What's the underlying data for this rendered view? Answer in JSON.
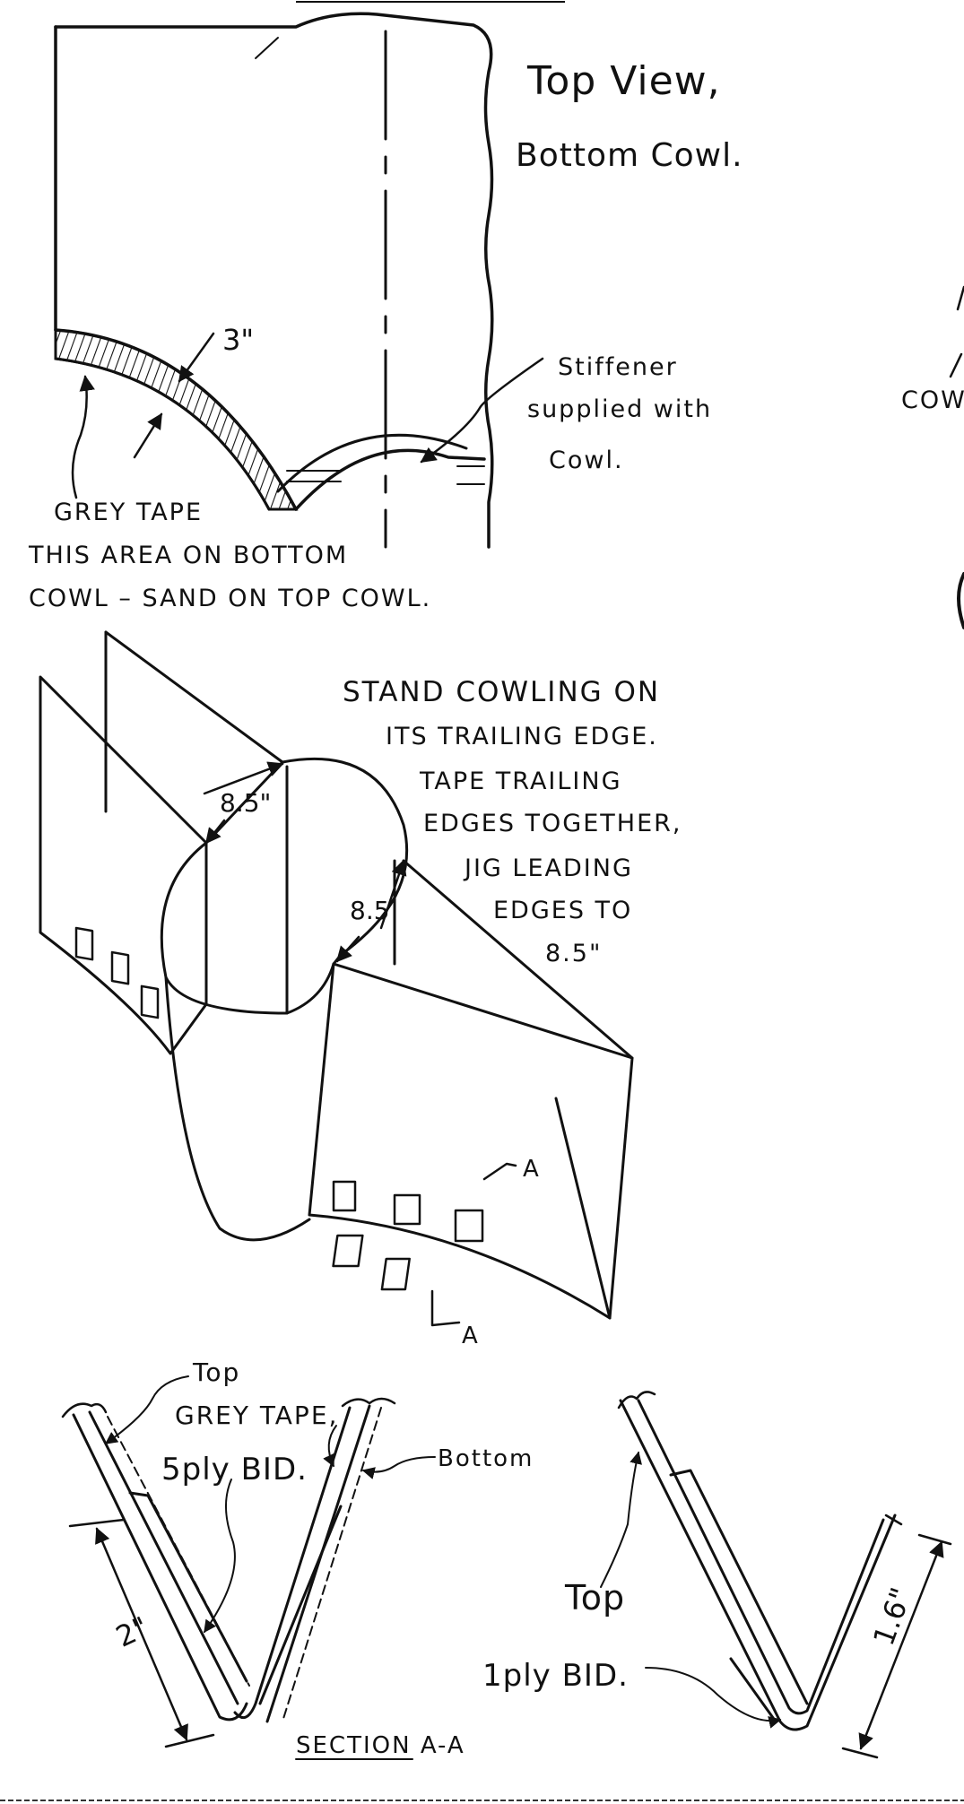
{
  "top_view": {
    "title_line1": "Top View,",
    "title_line2": "Bottom Cowl.",
    "dim_3in": "3\"",
    "stiffener_line1": "Stiffener",
    "stiffener_line2": "supplied with",
    "stiffener_line3": "Cowl.",
    "grey_tape_line1": "GREY TAPE",
    "grey_tape_line2": "THIS AREA ON BOTTOM",
    "grey_tape_line3": "COWL – SAND ON TOP COWL.",
    "edge_fragment": "COW"
  },
  "iso_view": {
    "note_line1": "STAND COWLING ON",
    "note_line2": "ITS TRAILING EDGE.",
    "note_line3": "TAPE TRAILING",
    "note_line4": "EDGES TOGETHER,",
    "note_line5": "JIG LEADING",
    "note_line6": "EDGES TO",
    "note_line7": "8.5\"",
    "dim_left": "8.5\"",
    "dim_right": "8.5",
    "section_mark_top": "A",
    "section_mark_bottom": "A"
  },
  "section_view": {
    "top_label": "Top",
    "grey_tape_label": "GREY TAPE,",
    "bottom_label": "Bottom",
    "ply5_label": "5ply BID.",
    "dim_2in": "2\"",
    "section_title": "SECTION A-A",
    "top_label_right": "Top",
    "ply1_label": "1ply BID.",
    "dim_1_6in": "1.6\""
  }
}
